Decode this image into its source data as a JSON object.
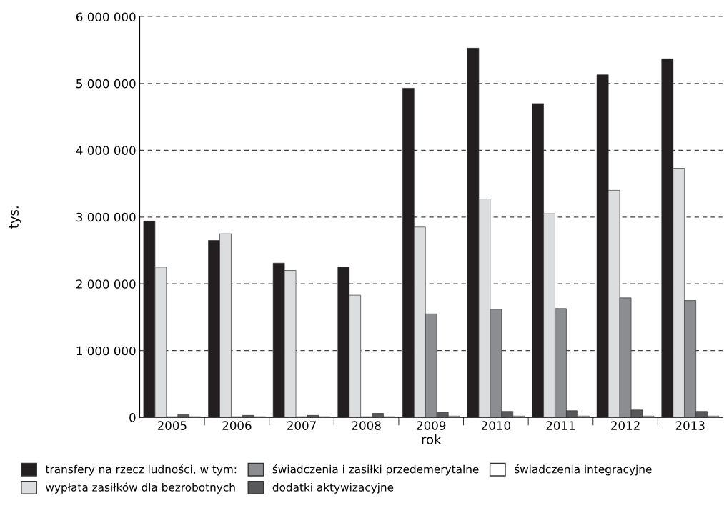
{
  "chart_data": {
    "type": "bar",
    "xlabel": "rok",
    "ylabel": "tys.",
    "categories": [
      "2005",
      "2006",
      "2007",
      "2008",
      "2009",
      "2010",
      "2011",
      "2012",
      "2013"
    ],
    "series": [
      {
        "name": "transfery na rzecz ludności, w tym:",
        "color": "#231f20",
        "values": [
          2940000,
          2650000,
          2310000,
          2250000,
          4930000,
          5530000,
          4700000,
          5130000,
          5370000
        ]
      },
      {
        "name": "wypłata zasiłków dla bezrobotnych",
        "color": "#dcdddf",
        "values": [
          2250000,
          2750000,
          2200000,
          1830000,
          2850000,
          3270000,
          3050000,
          3400000,
          3730000
        ]
      },
      {
        "name": "świadczenia i zasiłki przedemerytalne",
        "color": "#8c8d91",
        "values": [
          10000,
          10000,
          10000,
          10000,
          1550000,
          1620000,
          1630000,
          1790000,
          1750000
        ]
      },
      {
        "name": "dodatki aktywizacyjne",
        "color": "#58585a",
        "values": [
          40000,
          30000,
          30000,
          60000,
          80000,
          90000,
          100000,
          110000,
          90000
        ]
      },
      {
        "name": "świadczenia integracyjne",
        "color": "#ffffff",
        "values": [
          10000,
          10000,
          10000,
          10000,
          20000,
          20000,
          20000,
          20000,
          20000
        ]
      }
    ],
    "ylim": [
      0,
      6000000
    ],
    "yticks": [
      {
        "value": 0,
        "label": "0"
      },
      {
        "value": 1000000,
        "label": "1 000 000"
      },
      {
        "value": 2000000,
        "label": "2 000 000"
      },
      {
        "value": 3000000,
        "label": "3 000 000"
      },
      {
        "value": 4000000,
        "label": "4 000 000"
      },
      {
        "value": 5000000,
        "label": "5 000 000"
      },
      {
        "value": 6000000,
        "label": "6 000 000"
      }
    ],
    "grid": "y",
    "legend": "bottom"
  }
}
